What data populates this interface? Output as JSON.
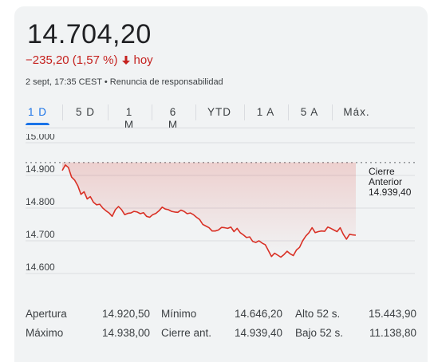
{
  "quote": {
    "price": "14.704,20",
    "change": "−235,20 (1,57 %)",
    "change_period": "hoy",
    "timestamp": "2 sept, 17:35 CEST",
    "separator": "•",
    "disclaimer": "Renuncia de responsabilidad",
    "down_color": "#c5221f",
    "accent_color": "#1a73e8"
  },
  "tabs": [
    {
      "label": "1 D",
      "active": true
    },
    {
      "label": "5 D",
      "active": false
    },
    {
      "label": "1 M",
      "active": false
    },
    {
      "label": "6 M",
      "active": false
    },
    {
      "label": "YTD",
      "active": false
    },
    {
      "label": "1 A",
      "active": false
    },
    {
      "label": "5 A",
      "active": false
    },
    {
      "label": "Máx.",
      "active": false
    }
  ],
  "chart_data": {
    "type": "line",
    "y_ticks": [
      "15.000",
      "14.900",
      "14.800",
      "14.700",
      "14.600"
    ],
    "y_tick_values": [
      15000,
      14900,
      14800,
      14700,
      14600
    ],
    "ylim": [
      14600,
      15000
    ],
    "grid": true,
    "line_color": "#d93025",
    "reference_line": {
      "value": 14939.4,
      "label_lines": [
        "Cierre",
        "Anterior",
        "14.939,40"
      ]
    },
    "series": [
      {
        "values": [
          14915,
          14932,
          14924,
          14895,
          14885,
          14868,
          14842,
          14850,
          14828,
          14835,
          14818,
          14810,
          14812,
          14800,
          14792,
          14785,
          14775,
          14795,
          14805,
          14795,
          14780,
          14784,
          14785,
          14790,
          14788,
          14783,
          14786,
          14775,
          14772,
          14780,
          14784,
          14792,
          14803,
          14797,
          14795,
          14790,
          14788,
          14787,
          14794,
          14790,
          14783,
          14785,
          14780,
          14772,
          14765,
          14750,
          14745,
          14740,
          14730,
          14730,
          14733,
          14741,
          14740,
          14738,
          14742,
          14728,
          14738,
          14725,
          14718,
          14710,
          14712,
          14698,
          14695,
          14700,
          14693,
          14688,
          14670,
          14652,
          14662,
          14656,
          14650,
          14658,
          14668,
          14660,
          14655,
          14672,
          14680,
          14700,
          14715,
          14725,
          14740,
          14725,
          14728,
          14730,
          14729,
          14742,
          14738,
          14733,
          14728,
          14740,
          14720,
          14705,
          14720,
          14718,
          14717
        ]
      }
    ]
  },
  "stats": [
    [
      {
        "label": "Apertura",
        "value": "14.920,50"
      },
      {
        "label": "Mínimo",
        "value": "14.646,20"
      },
      {
        "label": "Alto 52 s.",
        "value": "15.443,90"
      }
    ],
    [
      {
        "label": "Máximo",
        "value": "14.938,00"
      },
      {
        "label": "Cierre ant.",
        "value": "14.939,40"
      },
      {
        "label": "Bajo 52 s.",
        "value": "11.138,80"
      }
    ]
  ]
}
